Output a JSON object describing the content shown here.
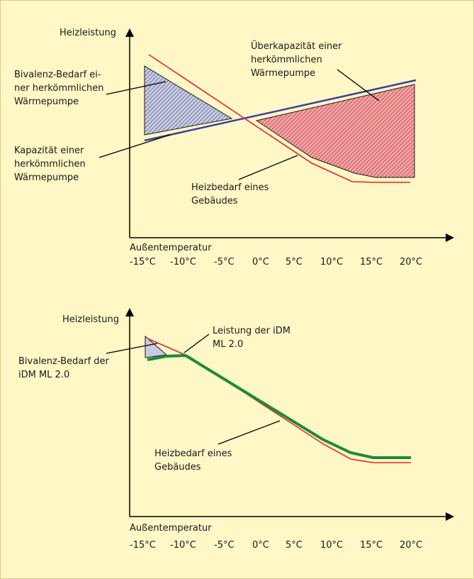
{
  "top_chart": {
    "y_axis_label": "Heizleistung",
    "x_axis_label": "Außentemperatur",
    "x_ticks": [
      "-15°C",
      "-10°C",
      "-5°C",
      "0°C",
      "5°C",
      "10°C",
      "15°C",
      "20°C"
    ],
    "annotations": {
      "bivalence": [
        "Bivalenz-Bedarf ei-",
        "ner herkömmlichen",
        "Wärmepumpe"
      ],
      "capacity": [
        "Kapazität einer",
        "herkömmlichen",
        "Wärmepumpe"
      ],
      "overcapacity": [
        "Überkapazität einer",
        "herkömmlichen",
        "Wärmepumpe"
      ],
      "demand": [
        "Heizbedarf eines",
        "Gebäudes"
      ]
    }
  },
  "bottom_chart": {
    "y_axis_label": "Heizleistung",
    "x_axis_label": "Außentemperatur",
    "x_ticks": [
      "-15°C",
      "-10°C",
      "-5°C",
      "0°C",
      "5°C",
      "10°C",
      "15°C",
      "20°C"
    ],
    "annotations": {
      "bivalence": [
        "Bivalenz-Bedarf der",
        "iDM ML 2.0"
      ],
      "performance": [
        "Leistung der iDM",
        "ML 2.0"
      ],
      "demand": [
        "Heizbedarf eines",
        "Gebäudes"
      ]
    }
  },
  "colors": {
    "background": "#fff7c6",
    "demand_line": "#e8262a",
    "capacity_line": "#3b3f9e",
    "idm_line": "#1b8a3c",
    "bivalence_fill": "#c7cce0",
    "overcapacity_fill": "#e98a8a"
  }
}
